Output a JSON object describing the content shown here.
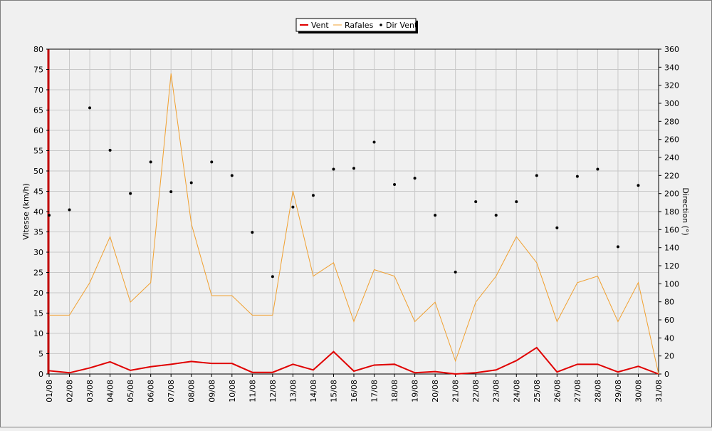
{
  "chart_data": {
    "type": "line",
    "categories": [
      "01/08",
      "02/08",
      "03/08",
      "04/08",
      "05/08",
      "06/08",
      "07/08",
      "08/08",
      "09/08",
      "10/08",
      "11/08",
      "12/08",
      "13/08",
      "14/08",
      "15/08",
      "16/08",
      "17/08",
      "18/08",
      "19/08",
      "20/08",
      "21/08",
      "22/08",
      "23/08",
      "24/08",
      "25/08",
      "26/08",
      "27/08",
      "28/08",
      "29/08",
      "30/08",
      "31/08"
    ],
    "ylabel": "Vitesse (km/h)",
    "y2label": "Direction (°)",
    "ylim": [
      0,
      80
    ],
    "y2lim": [
      0,
      360
    ],
    "yticks": [
      0,
      5,
      10,
      15,
      20,
      25,
      30,
      35,
      40,
      45,
      50,
      55,
      60,
      65,
      70,
      75,
      80
    ],
    "y2ticks": [
      0,
      20,
      40,
      60,
      80,
      100,
      120,
      140,
      160,
      180,
      200,
      220,
      240,
      260,
      280,
      300,
      320,
      340,
      360
    ],
    "grid": true,
    "legend_position": "top-center",
    "series": [
      {
        "name": "Vent",
        "type": "line",
        "axis": "left",
        "color": "#e00000",
        "values": [
          0.8,
          0.3,
          1.5,
          3.0,
          0.9,
          1.8,
          2.4,
          3.1,
          2.6,
          2.6,
          0.4,
          0.4,
          2.4,
          1.0,
          5.5,
          0.7,
          2.2,
          2.4,
          0.3,
          0.6,
          0.0,
          0.3,
          1.0,
          3.3,
          6.5,
          0.5,
          2.4,
          2.4,
          0.5,
          1.9,
          0.0
        ]
      },
      {
        "name": "Rafales",
        "type": "line",
        "axis": "left",
        "color": "#f0a030",
        "values": [
          14.5,
          14.5,
          22.5,
          33.8,
          17.7,
          22.5,
          74.0,
          37.0,
          19.3,
          19.3,
          14.5,
          14.5,
          45.1,
          24.1,
          27.4,
          12.9,
          25.7,
          24.1,
          12.9,
          17.7,
          3.2,
          17.7,
          24.1,
          33.8,
          27.4,
          12.9,
          22.5,
          24.1,
          12.9,
          22.5,
          0.0
        ]
      },
      {
        "name": "Dir Vent",
        "type": "scatter",
        "axis": "right",
        "color": "#000000",
        "values": [
          176,
          182,
          295,
          248,
          200,
          235,
          202,
          212,
          235,
          220,
          157,
          108,
          185,
          198,
          227,
          228,
          257,
          210,
          217,
          176,
          113,
          191,
          176,
          191,
          220,
          162,
          219,
          227,
          141,
          209,
          null
        ]
      }
    ]
  }
}
